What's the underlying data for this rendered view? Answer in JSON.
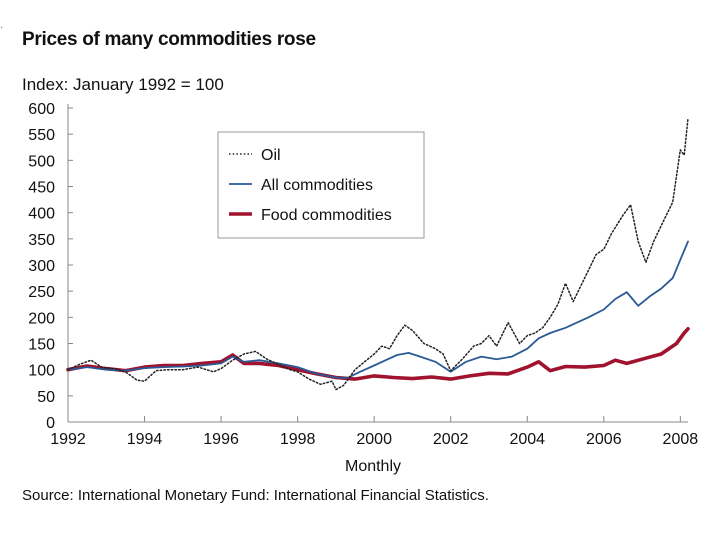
{
  "header": {
    "title": "Prices of many commodities rose",
    "y_units": "Index: January 1992 = 100",
    "source": "Source:  International Monetary Fund:  International Financial Statistics.",
    "corner_mark": "·"
  },
  "colors": {
    "oil": "#222222",
    "all_commodities": "#2a5a96",
    "food_commodities": "#a0122e",
    "axis": "#888888"
  },
  "chart_data": {
    "type": "line",
    "title": "Prices of many commodities rose",
    "subtitle": "Index: January 1992 = 100",
    "xlabel": "Monthly",
    "ylabel": "Index: January 1992 = 100",
    "xlim": [
      1992,
      2008.2
    ],
    "ylim": [
      0,
      600
    ],
    "x_ticks": [
      1992,
      1994,
      1996,
      1998,
      2000,
      2002,
      2004,
      2006,
      2008
    ],
    "y_ticks": [
      0,
      50,
      100,
      150,
      200,
      250,
      300,
      350,
      400,
      450,
      500,
      550,
      600
    ],
    "grid": false,
    "legend_position": "top-right",
    "series": [
      {
        "name": "Oil",
        "style": "dotted",
        "x": [
          1992,
          1992.3,
          1992.6,
          1992.9,
          1993.2,
          1993.5,
          1993.8,
          1994.0,
          1994.3,
          1994.6,
          1995.0,
          1995.4,
          1995.8,
          1996.0,
          1996.3,
          1996.6,
          1996.9,
          1997.2,
          1997.5,
          1997.8,
          1998.0,
          1998.3,
          1998.6,
          1998.9,
          1999.0,
          1999.2,
          1999.5,
          1999.8,
          2000.0,
          2000.2,
          2000.4,
          2000.6,
          2000.8,
          2001.0,
          2001.3,
          2001.6,
          2001.8,
          2002.0,
          2002.3,
          2002.6,
          2002.8,
          2003.0,
          2003.2,
          2003.5,
          2003.8,
          2004.0,
          2004.2,
          2004.4,
          2004.6,
          2004.8,
          2005.0,
          2005.2,
          2005.4,
          2005.6,
          2005.8,
          2006.0,
          2006.2,
          2006.5,
          2006.7,
          2006.9,
          2007.1,
          2007.3,
          2007.6,
          2007.8,
          2008.0,
          2008.1,
          2008.2
        ],
        "values": [
          100,
          110,
          118,
          104,
          102,
          96,
          80,
          78,
          98,
          100,
          100,
          105,
          96,
          102,
          118,
          130,
          135,
          120,
          110,
          100,
          96,
          82,
          72,
          78,
          62,
          70,
          100,
          118,
          130,
          145,
          140,
          165,
          185,
          175,
          150,
          140,
          130,
          98,
          120,
          145,
          150,
          165,
          145,
          190,
          150,
          165,
          170,
          180,
          200,
          225,
          265,
          230,
          260,
          290,
          320,
          330,
          360,
          395,
          415,
          345,
          305,
          345,
          390,
          420,
          520,
          510,
          580
        ]
      },
      {
        "name": "All commodities",
        "style": "solid",
        "x": [
          1992,
          1992.5,
          1993.0,
          1993.5,
          1994.0,
          1994.5,
          1995.0,
          1995.5,
          1996.0,
          1996.3,
          1996.6,
          1997.0,
          1997.5,
          1998.0,
          1998.5,
          1999.0,
          1999.3,
          1999.6,
          2000.0,
          2000.3,
          2000.6,
          2000.9,
          2001.2,
          2001.6,
          2002.0,
          2002.4,
          2002.8,
          2003.2,
          2003.6,
          2004.0,
          2004.3,
          2004.6,
          2005.0,
          2005.3,
          2005.6,
          2006.0,
          2006.3,
          2006.6,
          2006.9,
          2007.2,
          2007.5,
          2007.8,
          2008.0,
          2008.2
        ],
        "values": [
          100,
          105,
          100,
          98,
          103,
          105,
          106,
          108,
          112,
          125,
          115,
          118,
          112,
          105,
          92,
          85,
          84,
          95,
          108,
          118,
          128,
          132,
          125,
          115,
          96,
          115,
          125,
          120,
          125,
          140,
          160,
          170,
          180,
          190,
          200,
          215,
          235,
          248,
          222,
          240,
          255,
          275,
          310,
          345
        ]
      },
      {
        "name": "Food commodities",
        "style": "thick",
        "x": [
          1992,
          1992.5,
          1993.0,
          1993.5,
          1994.0,
          1994.5,
          1995.0,
          1995.5,
          1996.0,
          1996.3,
          1996.6,
          1997.0,
          1997.5,
          1998.0,
          1998.5,
          1999.0,
          1999.5,
          2000.0,
          2000.5,
          2001.0,
          2001.5,
          2002.0,
          2002.5,
          2003.0,
          2003.5,
          2004.0,
          2004.3,
          2004.6,
          2005.0,
          2005.5,
          2006.0,
          2006.3,
          2006.6,
          2007.0,
          2007.5,
          2007.9,
          2008.1,
          2008.2
        ],
        "values": [
          100,
          107,
          102,
          98,
          105,
          108,
          108,
          112,
          115,
          128,
          112,
          112,
          108,
          100,
          92,
          85,
          82,
          88,
          85,
          83,
          86,
          82,
          88,
          93,
          92,
          105,
          115,
          98,
          106,
          105,
          108,
          118,
          112,
          120,
          130,
          150,
          170,
          178
        ]
      }
    ]
  }
}
